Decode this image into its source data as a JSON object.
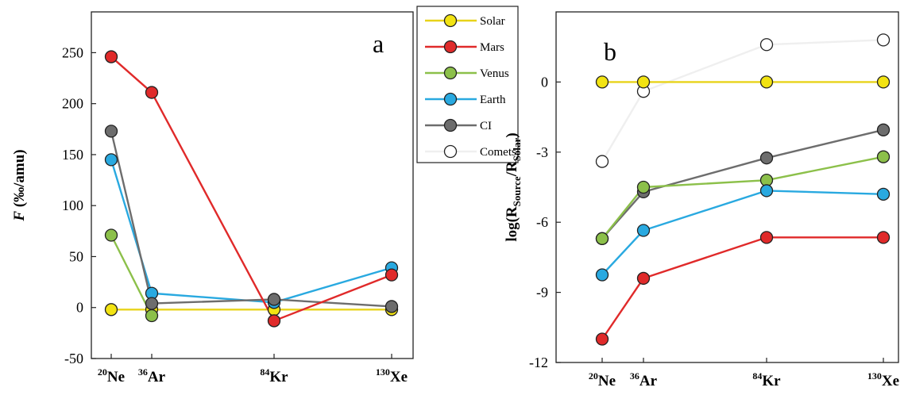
{
  "chart_data": [
    {
      "type": "line",
      "panel_label": "a",
      "ylabel_main": "F",
      "ylabel_rest": " (‰/amu)",
      "ylim": [
        -50,
        290
      ],
      "yticks": [
        -50,
        0,
        50,
        100,
        150,
        200,
        250
      ],
      "x": [
        20,
        36,
        84,
        130
      ],
      "categories": [
        {
          "sup": "20",
          "base": "Ne"
        },
        {
          "sup": "36",
          "base": "Ar"
        },
        {
          "sup": "84",
          "base": "Kr"
        },
        {
          "sup": "130",
          "base": "Xe"
        }
      ],
      "grid": false,
      "series": [
        {
          "name": "Solar",
          "color": "#e8d31a",
          "fill": "#f2e312",
          "values": [
            -2,
            -2,
            -2,
            -2
          ]
        },
        {
          "name": "Venus",
          "color": "#8cc04a",
          "fill": "#8cc04a",
          "values": [
            71,
            -8,
            null,
            null
          ]
        },
        {
          "name": "Earth",
          "color": "#29a9e0",
          "fill": "#29a9e0",
          "values": [
            145,
            14,
            5,
            39
          ]
        },
        {
          "name": "CI",
          "color": "#6d6d6d",
          "fill": "#6d6d6d",
          "values": [
            173,
            4,
            8,
            1
          ]
        },
        {
          "name": "Mars",
          "color": "#e02a2a",
          "fill": "#e02a2a",
          "values": [
            246,
            211,
            -13,
            32
          ]
        }
      ]
    },
    {
      "type": "line",
      "panel_label": "b",
      "ylabel_main": "log(R",
      "ylabel_sub1": "Source",
      "ylabel_mid": "/R",
      "ylabel_sub2": "Solar",
      "ylabel_end": ")",
      "ylim": [
        -12,
        3
      ],
      "yticks": [
        -12,
        -9,
        -6,
        -3,
        0
      ],
      "x": [
        20,
        36,
        84,
        130
      ],
      "categories": [
        {
          "sup": "20",
          "base": "Ne"
        },
        {
          "sup": "36",
          "base": "Ar"
        },
        {
          "sup": "84",
          "base": "Kr"
        },
        {
          "sup": "130",
          "base": "Xe"
        }
      ],
      "grid": false,
      "series": [
        {
          "name": "Comets",
          "color": "#efefef",
          "fill": "#ffffff",
          "values": [
            -3.4,
            -0.4,
            1.6,
            1.8
          ]
        },
        {
          "name": "Solar",
          "color": "#e8d31a",
          "fill": "#f2e312",
          "values": [
            0,
            0,
            0,
            0
          ]
        },
        {
          "name": "CI",
          "color": "#6d6d6d",
          "fill": "#6d6d6d",
          "values": [
            -6.7,
            -4.7,
            -3.25,
            -2.05
          ]
        },
        {
          "name": "Venus",
          "color": "#8cc04a",
          "fill": "#8cc04a",
          "values": [
            -6.7,
            -4.5,
            -4.2,
            -3.2
          ]
        },
        {
          "name": "Earth",
          "color": "#29a9e0",
          "fill": "#29a9e0",
          "values": [
            -8.25,
            -6.35,
            -4.65,
            -4.8
          ]
        },
        {
          "name": "Mars",
          "color": "#e02a2a",
          "fill": "#e02a2a",
          "values": [
            -11,
            -8.4,
            -6.65,
            -6.65
          ]
        }
      ]
    }
  ],
  "legend": {
    "placement": "between-panels",
    "items": [
      {
        "name": "Solar",
        "color": "#e8d31a",
        "fill": "#f2e312"
      },
      {
        "name": "Mars",
        "color": "#e02a2a",
        "fill": "#e02a2a"
      },
      {
        "name": "Venus",
        "color": "#8cc04a",
        "fill": "#8cc04a"
      },
      {
        "name": "Earth",
        "color": "#29a9e0",
        "fill": "#29a9e0"
      },
      {
        "name": "CI",
        "color": "#6d6d6d",
        "fill": "#6d6d6d"
      },
      {
        "name": "Comets",
        "color": "#efefef",
        "fill": "#ffffff"
      }
    ]
  }
}
